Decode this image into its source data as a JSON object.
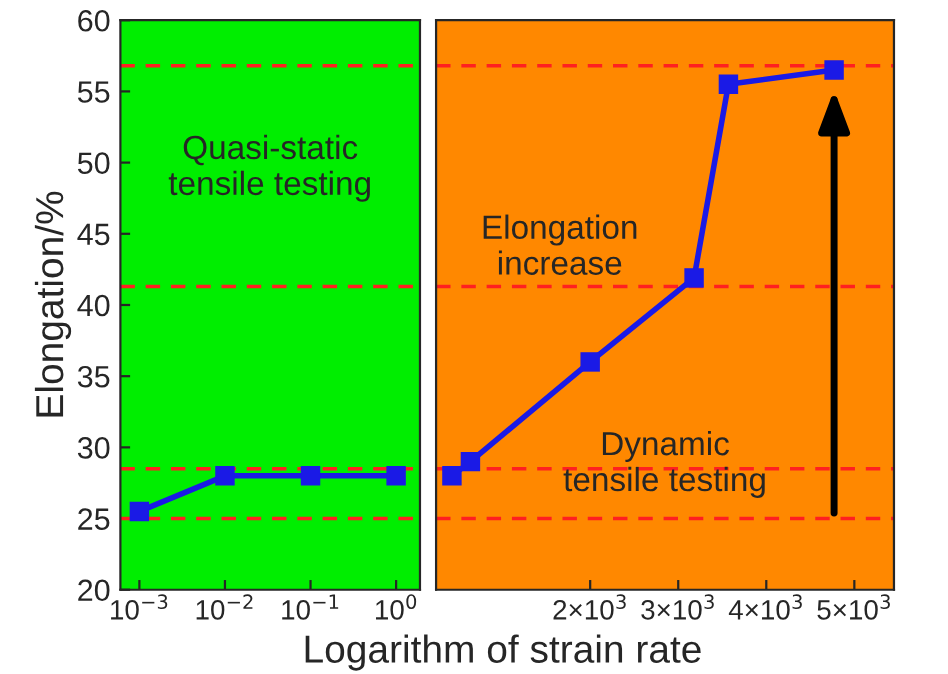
{
  "chart_data": [
    {
      "type": "line",
      "ylabel": "Elongation/%",
      "xlabel": "Logarithm of strain rate",
      "log": "x",
      "x": [
        0.001,
        0.01,
        0.1,
        1
      ],
      "series": [
        {
          "color": "#1a1ae6",
          "values": [
            25.5,
            28,
            28,
            28
          ]
        }
      ],
      "xlim": [
        0.0006,
        1.9
      ],
      "xticks": [
        {
          "value": 0.001,
          "label": "10$^{−3}$"
        },
        {
          "value": 0.01,
          "label": "10$^{−2}$"
        },
        {
          "value": 0.1,
          "label": "10$^{−1}$"
        },
        {
          "value": 1,
          "label": "10$^{0}$"
        }
      ],
      "ylim": [
        20,
        60
      ],
      "yticks": [
        20,
        25,
        30,
        35,
        40,
        45,
        50,
        55,
        60
      ],
      "marker": "square",
      "line_style": "solid",
      "grid": false,
      "legend": false,
      "bands": [
        {
          "axis": "x",
          "from": 0.0006,
          "to": 1.9,
          "color": "#00ee00"
        }
      ],
      "ref_lines": [
        {
          "axis": "y",
          "value": 25,
          "color": "#ff2020",
          "line_style": "dashed"
        },
        {
          "axis": "y",
          "value": 28.5,
          "color": "#ff2020",
          "line_style": "dashed"
        },
        {
          "axis": "y",
          "value": 41.3,
          "color": "#ff2020",
          "line_style": "dashed"
        },
        {
          "axis": "y",
          "value": 56.8,
          "color": "#ff2020",
          "line_style": "dashed"
        }
      ],
      "annotations": [
        "Quasi-static\ntensile testing"
      ]
    },
    {
      "type": "line",
      "x": [
        430,
        640,
        2000,
        3180,
        3570,
        4770
      ],
      "series": [
        {
          "color": "#1a1ae6",
          "values": [
            28,
            29,
            36,
            41.9,
            55.5,
            56.5
          ]
        }
      ],
      "xlim": [
        250,
        5450
      ],
      "xticks": [
        {
          "value": 2000,
          "label": "2×10$^{3}$"
        },
        {
          "value": 3000,
          "label": "3×10$^{3}$"
        },
        {
          "value": 4000,
          "label": "4×10$^{3}$"
        },
        {
          "value": 5000,
          "label": "5×10$^{3}$"
        }
      ],
      "ylim": [
        20,
        60
      ],
      "tick_labels": "x",
      "marker": "square",
      "line_style": "solid",
      "grid": false,
      "legend": false,
      "bands": [
        {
          "axis": "x",
          "from": 250,
          "to": 5450,
          "color": "#ff8800"
        }
      ],
      "ref_lines": [
        {
          "axis": "y",
          "value": 25,
          "color": "#ff2020",
          "line_style": "dashed"
        },
        {
          "axis": "y",
          "value": 28.5,
          "color": "#ff2020",
          "line_style": "dashed"
        },
        {
          "axis": "y",
          "value": 41.3,
          "color": "#ff2020",
          "line_style": "dashed"
        },
        {
          "axis": "y",
          "value": 56.8,
          "color": "#ff2020",
          "line_style": "dashed"
        }
      ],
      "annotations": [
        "Elongation\nincrease",
        "Dynamic\ntensile testing"
      ]
    }
  ]
}
